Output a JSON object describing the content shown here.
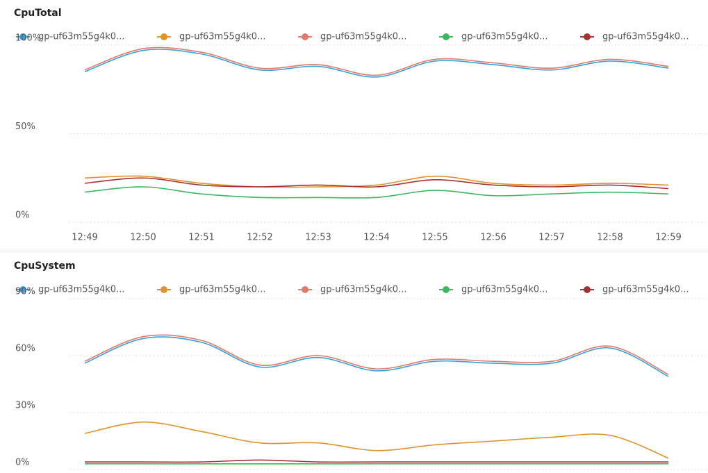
{
  "chart_data": [
    {
      "type": "line",
      "title": "CpuTotal",
      "categories": [
        "12:49",
        "12:50",
        "12:51",
        "12:52",
        "12:53",
        "12:54",
        "12:55",
        "12:56",
        "12:57",
        "12:58",
        "12:59"
      ],
      "ylim": [
        0,
        100
      ],
      "yticks": [
        {
          "value": 0,
          "label": "0%"
        },
        {
          "value": 50,
          "label": "50%"
        },
        {
          "value": 100,
          "label": "100%"
        }
      ],
      "grid": true,
      "series": [
        {
          "name": "gp-uf63m55g4k0...",
          "color": "#3aa0d8",
          "values": [
            85,
            97,
            95,
            86,
            88,
            82,
            91,
            89,
            86,
            91,
            87
          ]
        },
        {
          "name": "gp-uf63m55g4k0...",
          "color": "#e0922f",
          "values": [
            25,
            26,
            22,
            20,
            20,
            21,
            26,
            22,
            21,
            22,
            21
          ]
        },
        {
          "name": "gp-uf63m55g4k0...",
          "color": "#e07a6a",
          "values": [
            86,
            98,
            96,
            87,
            89,
            83,
            92,
            90,
            87,
            92,
            88
          ]
        },
        {
          "name": "gp-uf63m55g4k0...",
          "color": "#3cb860",
          "values": [
            17,
            20,
            16,
            14,
            14,
            14,
            18,
            15,
            16,
            17,
            16
          ]
        },
        {
          "name": "gp-uf63m55g4k0...",
          "color": "#a83232",
          "values": [
            22,
            25,
            21,
            20,
            21,
            20,
            24,
            21,
            20,
            21,
            19
          ]
        }
      ]
    },
    {
      "type": "line",
      "title": "CpuSystem",
      "ylim": [
        0,
        90
      ],
      "yticks": [
        {
          "value": 0,
          "label": "0%"
        },
        {
          "value": 30,
          "label": "30%"
        },
        {
          "value": 60,
          "label": "60%"
        },
        {
          "value": 90,
          "label": "90%"
        }
      ],
      "grid": true,
      "series": [
        {
          "name": "gp-uf63m55g4k0...",
          "color": "#3aa0d8",
          "values": [
            56,
            69,
            67,
            54,
            59,
            52,
            57,
            56,
            56,
            64,
            49
          ]
        },
        {
          "name": "gp-uf63m55g4k0...",
          "color": "#e0922f",
          "values": [
            19,
            25,
            20,
            14,
            14,
            10,
            13,
            15,
            17,
            18,
            6
          ]
        },
        {
          "name": "gp-uf63m55g4k0...",
          "color": "#e07a6a",
          "values": [
            57,
            70,
            68,
            55,
            60,
            53,
            58,
            57,
            57,
            65,
            50
          ]
        },
        {
          "name": "gp-uf63m55g4k0...",
          "color": "#3cb860",
          "values": [
            3,
            3,
            3,
            3,
            3,
            3,
            3,
            3,
            3,
            3,
            3
          ]
        },
        {
          "name": "gp-uf63m55g4k0...",
          "color": "#a83232",
          "values": [
            4,
            4,
            4,
            5,
            4,
            4,
            4,
            4,
            4,
            4,
            4
          ]
        }
      ]
    }
  ]
}
